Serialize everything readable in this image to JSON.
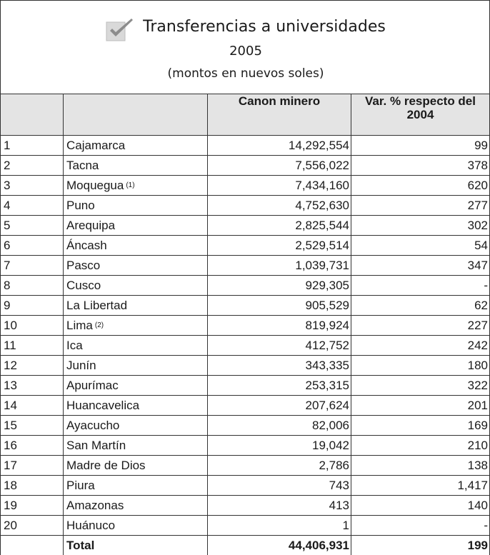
{
  "header": {
    "title": "Transferencias a universidades",
    "year": "2005",
    "subtitle": "(montos en nuevos soles)"
  },
  "table": {
    "columns": [
      "Canon minero",
      "Var. % respecto del 2004"
    ],
    "rows": [
      {
        "rank": "1",
        "name": "Cajamarca",
        "canon": "14,292,554",
        "var": "99"
      },
      {
        "rank": "2",
        "name": "Tacna",
        "canon": "7,556,022",
        "var": "378"
      },
      {
        "rank": "3",
        "name": "Moquegua",
        "note": "(1)",
        "canon": "7,434,160",
        "var": "620"
      },
      {
        "rank": "4",
        "name": "Puno",
        "canon": "4,752,630",
        "var": "277"
      },
      {
        "rank": "5",
        "name": "Arequipa",
        "canon": "2,825,544",
        "var": "302"
      },
      {
        "rank": "6",
        "name": "Áncash",
        "canon": "2,529,514",
        "var": "54"
      },
      {
        "rank": "7",
        "name": "Pasco",
        "canon": "1,039,731",
        "var": "347"
      },
      {
        "rank": "8",
        "name": "Cusco",
        "canon": "929,305",
        "var": "-"
      },
      {
        "rank": "9",
        "name": "La Libertad",
        "canon": "905,529",
        "var": "62"
      },
      {
        "rank": "10",
        "name": "Lima",
        "note": "(2)",
        "canon": "819,924",
        "var": "227"
      },
      {
        "rank": "11",
        "name": "Ica",
        "canon": "412,752",
        "var": "242"
      },
      {
        "rank": "12",
        "name": "Junín",
        "canon": "343,335",
        "var": "180"
      },
      {
        "rank": "13",
        "name": "Apurímac",
        "canon": "253,315",
        "var": "322"
      },
      {
        "rank": "14",
        "name": "Huancavelica",
        "canon": "207,624",
        "var": "201"
      },
      {
        "rank": "15",
        "name": "Ayacucho",
        "canon": "82,006",
        "var": "169"
      },
      {
        "rank": "16",
        "name": "San Martín",
        "canon": "19,042",
        "var": "210"
      },
      {
        "rank": "17",
        "name": "Madre de Dios",
        "canon": "2,786",
        "var": "138"
      },
      {
        "rank": "18",
        "name": "Piura",
        "canon": "743",
        "var": "1,417"
      },
      {
        "rank": "19",
        "name": "Amazonas",
        "canon": "413",
        "var": "140"
      },
      {
        "rank": "20",
        "name": "Huánuco",
        "canon": "1",
        "var": "-"
      }
    ],
    "total": {
      "label": "Total",
      "canon": "44,406,931",
      "var": "199"
    }
  }
}
